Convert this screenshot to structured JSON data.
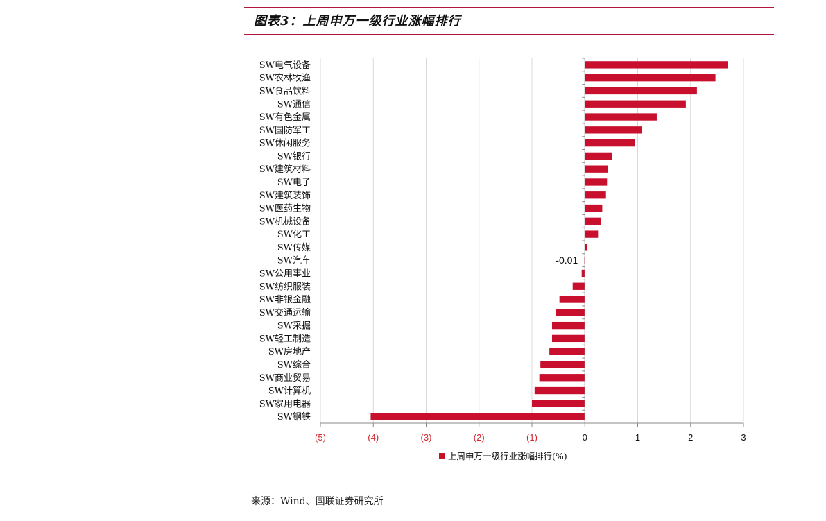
{
  "header": {
    "title": "图表3：上周申万一级行业涨幅排行"
  },
  "footer": {
    "source": "来源：Wind、国联证券研究所"
  },
  "colors": {
    "bar": "#c8102e",
    "rule": "#b0173a",
    "negative_tick": "#d0262e",
    "grid": "#d9d9d9"
  },
  "chart_data": {
    "type": "bar",
    "orientation": "horizontal",
    "categories": [
      "SW电气设备",
      "SW农林牧渔",
      "SW食品饮料",
      "SW通信",
      "SW有色金属",
      "SW国防军工",
      "SW休闲服务",
      "SW银行",
      "SW建筑材料",
      "SW电子",
      "SW建筑装饰",
      "SW医药生物",
      "SW机械设备",
      "SW化工",
      "SW传媒",
      "SW汽车",
      "SW公用事业",
      "SW纺织服装",
      "SW非银金融",
      "SW交通运输",
      "SW采掘",
      "SW轻工制造",
      "SW房地产",
      "SW综合",
      "SW商业贸易",
      "SW计算机",
      "SW家用电器",
      "SW钢铁"
    ],
    "series": [
      {
        "name": "上周申万一级行业涨幅排行(%)",
        "values": [
          2.7,
          2.47,
          2.12,
          1.91,
          1.36,
          1.08,
          0.95,
          0.51,
          0.44,
          0.42,
          0.4,
          0.33,
          0.31,
          0.25,
          0.05,
          -0.01,
          -0.06,
          -0.23,
          -0.48,
          -0.55,
          -0.62,
          -0.62,
          -0.67,
          -0.84,
          -0.86,
          -0.95,
          -1.0,
          -4.05
        ]
      }
    ],
    "data_labels": [
      {
        "category": "SW汽车",
        "text": "-0.01"
      }
    ],
    "xlim": [
      -5,
      3
    ],
    "xticks": [
      -5,
      -4,
      -3,
      -2,
      -1,
      0,
      1,
      2,
      3
    ],
    "xtick_labels": [
      "(5)",
      "(4)",
      "(3)",
      "(2)",
      "(1)",
      "0",
      "1",
      "2",
      "3"
    ],
    "grid": "vertical",
    "legend": {
      "position": "bottom-center",
      "label": "上周申万一级行业涨幅排行(%)"
    },
    "title": "",
    "xlabel": "",
    "ylabel": ""
  }
}
